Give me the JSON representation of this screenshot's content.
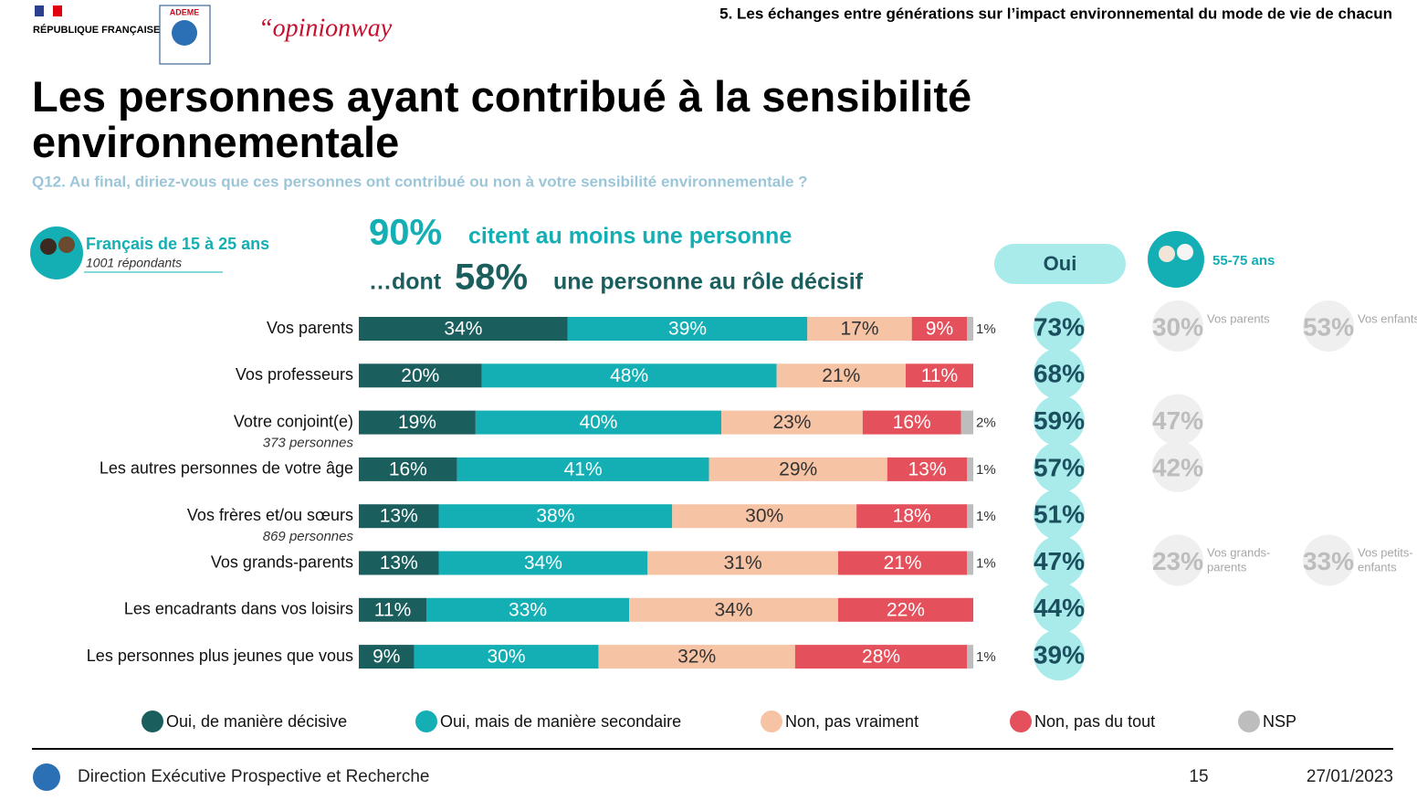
{
  "header": {
    "republic": "RÉPUBLIQUE FRANÇAISE",
    "ademe": "ADEME",
    "pollster": "“opinionway",
    "section": "5. Les échanges entre générations sur l’impact environnemental du mode de vie de chacun"
  },
  "title": "Les personnes ayant contribué à la sensibilité environnementale",
  "question": "Q12. Au final, diriez-vous que ces personnes ont contribué ou non à votre sensibilité environnementale ?",
  "sample": {
    "label": "Français de 15 à 25 ans",
    "count": "1001 répondants"
  },
  "callout": {
    "line1_value": "90%",
    "line1_text": "citent au moins une personne",
    "line2_prefix": "…dont",
    "line2_value": "58%",
    "line2_text": "une personne au rôle décisif"
  },
  "chart_data": {
    "type": "stacked-bar-horizontal",
    "categories": [
      "Vos parents",
      "Vos professeurs",
      "Votre conjoint(e)",
      "Les autres personnes de votre âge",
      "Vos frères et/ou sœurs",
      "Vos grands-parents",
      "Les encadrants dans vos loisirs",
      "Les personnes plus jeunes que vous"
    ],
    "category_notes": [
      null,
      null,
      "373 personnes",
      null,
      "869 personnes",
      null,
      null,
      null
    ],
    "xlim": [
      0,
      100
    ],
    "series": [
      {
        "name": "Oui, de manière décisive",
        "color": "#1b5e5e",
        "values": [
          34,
          20,
          19,
          16,
          13,
          13,
          11,
          9
        ],
        "value_labels": [
          "34%",
          "20%",
          "19%",
          "16%",
          "13%",
          "13%",
          "11%",
          "9%"
        ]
      },
      {
        "name": "Oui, mais de manière secondaire",
        "color": "#14afb4",
        "values": [
          39,
          48,
          40,
          41,
          38,
          34,
          33,
          30
        ],
        "value_labels": [
          "39%",
          "48%",
          "40%",
          "41%",
          "38%",
          "34%",
          "33%",
          "30%"
        ]
      },
      {
        "name": "Non, pas vraiment",
        "color": "#f6c3a4",
        "values": [
          17,
          21,
          23,
          29,
          30,
          31,
          34,
          32
        ],
        "value_labels": [
          "17%",
          "21%",
          "23%",
          "29%",
          "30%",
          "31%",
          "34%",
          "32%"
        ]
      },
      {
        "name": "Non, pas du tout",
        "color": "#e4505b",
        "values": [
          9,
          11,
          16,
          13,
          18,
          21,
          22,
          28
        ],
        "value_labels": [
          "9%",
          "11%",
          "16%",
          "13%",
          "18%",
          "21%",
          "22%",
          "28%"
        ]
      },
      {
        "name": "NSP",
        "color": "#bdbdbd",
        "values": [
          1,
          null,
          2,
          1,
          1,
          1,
          null,
          1
        ],
        "value_labels": [
          "1%",
          null,
          "2%",
          "1%",
          "1%",
          "1%",
          null,
          "1%"
        ]
      }
    ],
    "total": {
      "label": "Oui",
      "color": "#a9ebeb",
      "values": [
        73,
        68,
        59,
        57,
        51,
        47,
        44,
        39
      ],
      "value_labels": [
        "73%",
        "68%",
        "59%",
        "57%",
        "51%",
        "47%",
        "44%",
        "39%"
      ]
    },
    "comparison": {
      "label": "55-75 ans",
      "columns": [
        {
          "values": [
            30,
            null,
            47,
            42,
            null,
            23,
            null,
            null
          ],
          "value_labels": [
            "30%",
            null,
            "47%",
            "42%",
            null,
            "23%",
            null,
            null
          ],
          "notes": [
            "Vos parents",
            null,
            null,
            null,
            null,
            "Vos grands-parents",
            null,
            null
          ]
        },
        {
          "values": [
            53,
            null,
            null,
            null,
            null,
            33,
            null,
            null
          ],
          "value_labels": [
            "53%",
            null,
            null,
            null,
            null,
            "33%",
            null,
            null
          ],
          "notes": [
            "Vos enfants",
            null,
            null,
            null,
            null,
            "Vos petits-enfants",
            null,
            null
          ]
        }
      ]
    }
  },
  "footer": {
    "department": "Direction Exécutive Prospective et Recherche",
    "page": "15",
    "date": "27/01/2023"
  }
}
